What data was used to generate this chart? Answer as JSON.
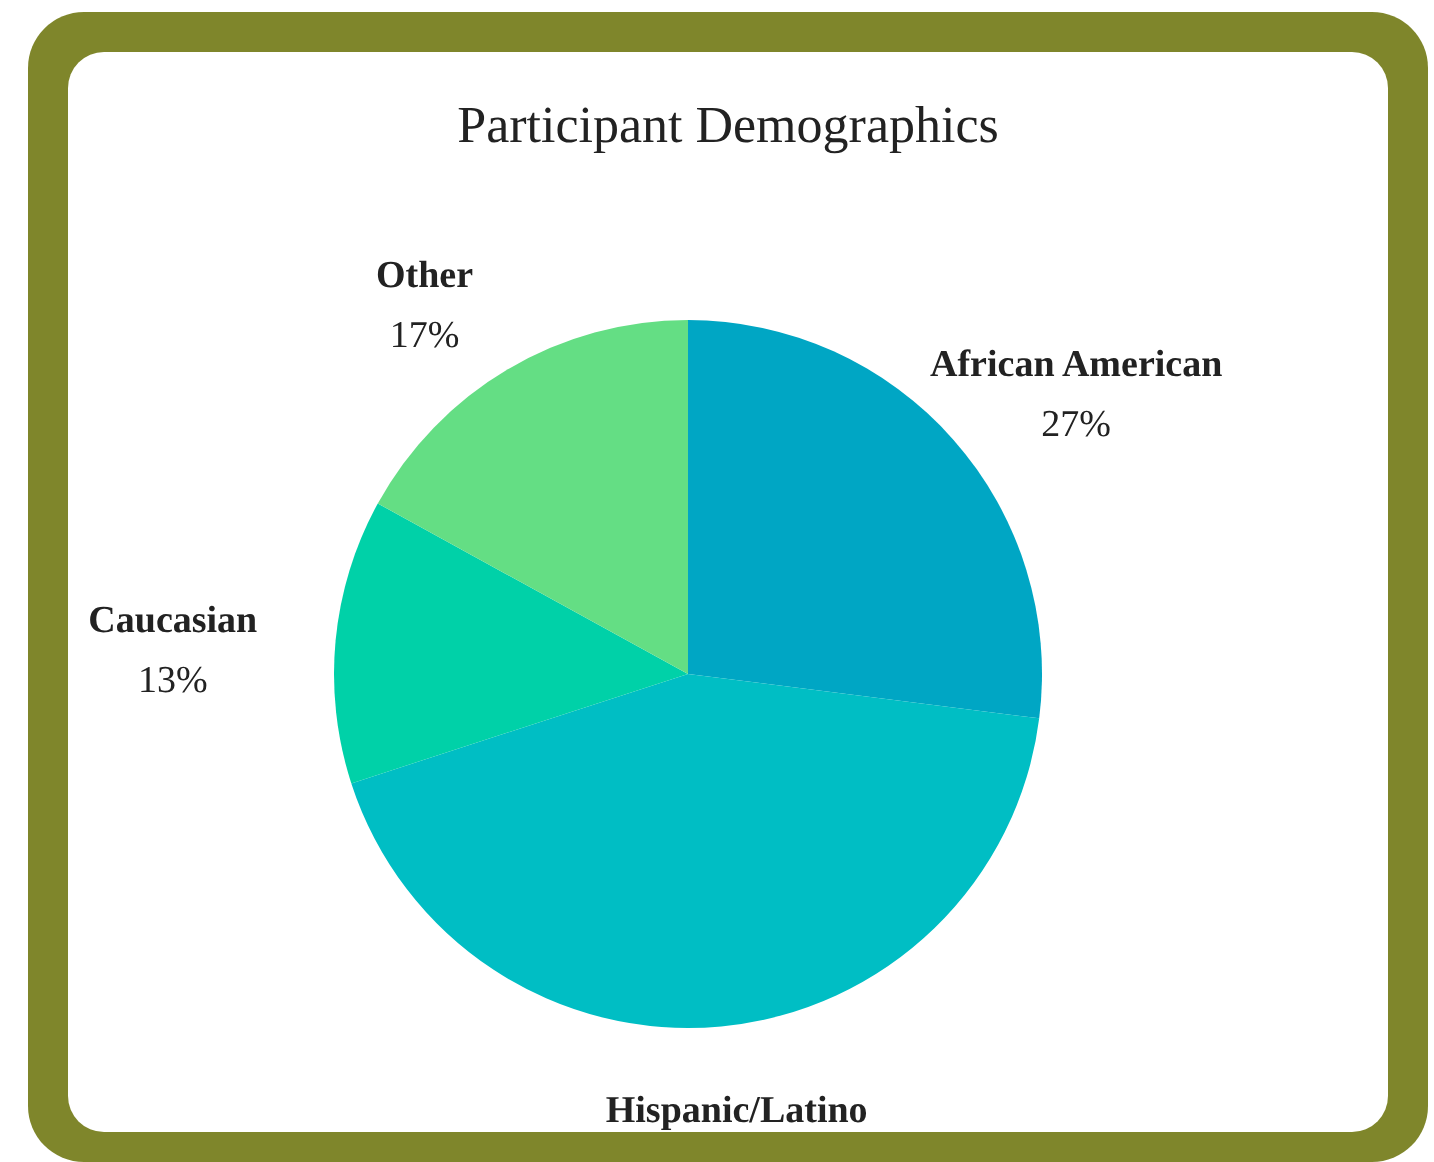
{
  "chart_data": {
    "type": "pie",
    "title": "Participant Demographics",
    "categories": [
      "African American",
      "Hispanic/Latino",
      "Caucasian",
      "Other"
    ],
    "values": [
      27,
      43,
      13,
      17
    ],
    "colors": [
      "#00a6c4",
      "#00bec4",
      "#00d1a8",
      "#64de84"
    ],
    "value_labels": [
      "27%",
      null,
      "13%",
      "17%"
    ]
  }
}
